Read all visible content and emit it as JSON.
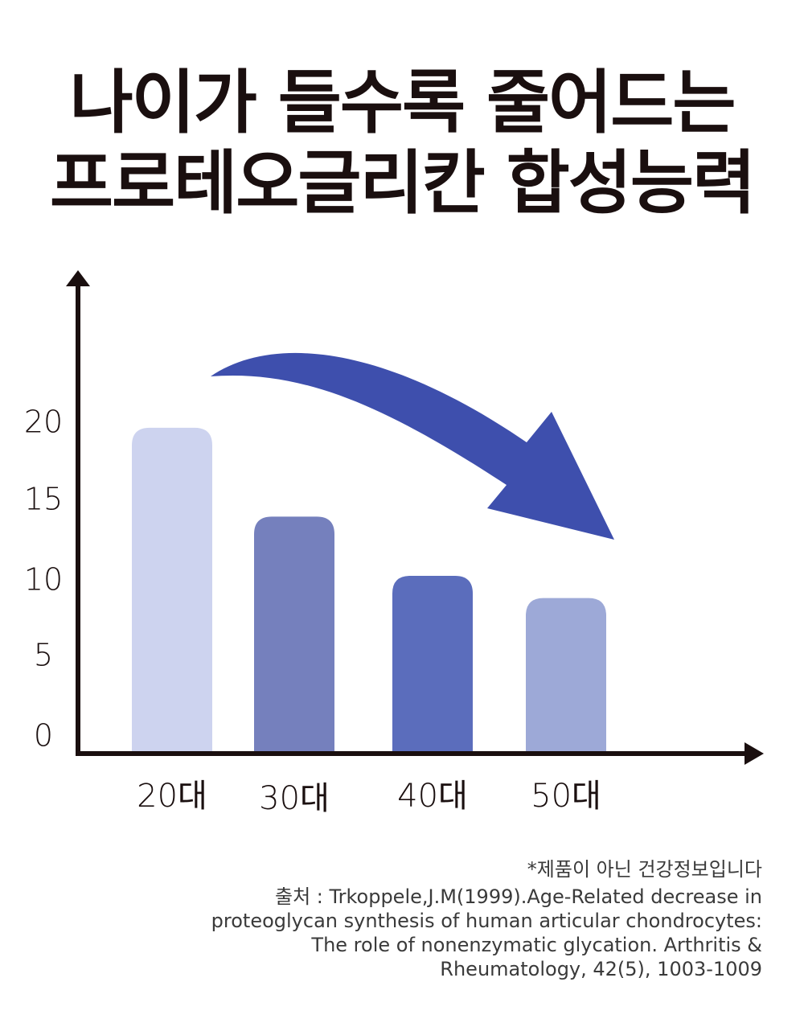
{
  "title": {
    "line1": "나이가 들수록 줄어드는",
    "line2": "프로테오글리칸 합성능력"
  },
  "chart_data": {
    "type": "bar",
    "categories": [
      "20대",
      "30대",
      "40대",
      "50대"
    ],
    "values": [
      22,
      16,
      12,
      10.5
    ],
    "yticks": [
      0,
      5,
      10,
      15,
      20
    ],
    "ylim": [
      0,
      24
    ],
    "xlabel": "",
    "ylabel": "",
    "grid": false,
    "bar_colors": [
      "#cdd3ef",
      "#7580bd",
      "#5b6dbc",
      "#9da9d7"
    ],
    "trend_arrow_color": "#3e4fad",
    "axis_color": "#1a0f0f"
  },
  "notes": {
    "disclaimer": "*제품이 아닌 건강정보입니다",
    "source": [
      "출처 : Trkoppele,J.M(1999).Age-Related decrease in",
      "proteoglycan synthesis of human articular chondrocytes:",
      "The role of nonenzymatic glycation. Arthritis &",
      "Rheumatology, 42(5), 1003-1009"
    ]
  }
}
